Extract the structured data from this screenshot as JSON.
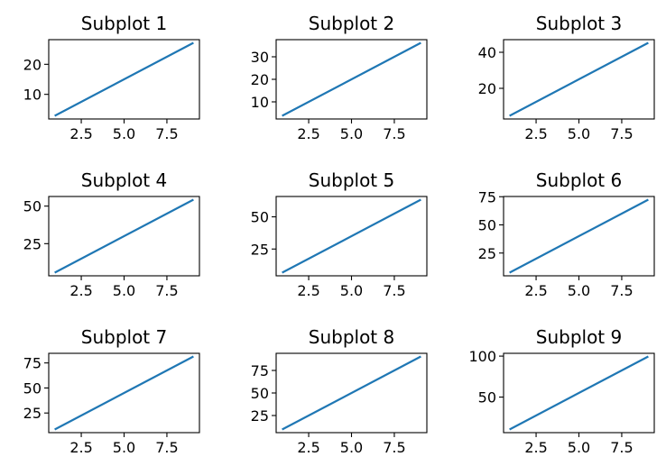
{
  "chart_data": [
    {
      "type": "line",
      "title": "Subplot 1",
      "x": [
        1,
        9
      ],
      "y": [
        3,
        27
      ],
      "xlim": [
        0.6,
        9.4
      ],
      "ylim": [
        1.8,
        28.2
      ],
      "xticks": [
        2.5,
        5.0,
        7.5
      ],
      "yticks": [
        10,
        20
      ],
      "xtick_labels": [
        "2.5",
        "5.0",
        "7.5"
      ],
      "ytick_labels": [
        "10",
        "20"
      ],
      "line_color": "#1f77b4"
    },
    {
      "type": "line",
      "title": "Subplot 2",
      "x": [
        1,
        9
      ],
      "y": [
        4,
        36
      ],
      "xlim": [
        0.6,
        9.4
      ],
      "ylim": [
        2.4,
        37.6
      ],
      "xticks": [
        2.5,
        5.0,
        7.5
      ],
      "yticks": [
        10,
        20,
        30
      ],
      "xtick_labels": [
        "2.5",
        "5.0",
        "7.5"
      ],
      "ytick_labels": [
        "10",
        "20",
        "30"
      ],
      "line_color": "#1f77b4"
    },
    {
      "type": "line",
      "title": "Subplot 3",
      "x": [
        1,
        9
      ],
      "y": [
        5,
        45
      ],
      "xlim": [
        0.6,
        9.4
      ],
      "ylim": [
        3,
        47
      ],
      "xticks": [
        2.5,
        5.0,
        7.5
      ],
      "yticks": [
        20,
        40
      ],
      "xtick_labels": [
        "2.5",
        "5.0",
        "7.5"
      ],
      "ytick_labels": [
        "20",
        "40"
      ],
      "line_color": "#1f77b4"
    },
    {
      "type": "line",
      "title": "Subplot 4",
      "x": [
        1,
        9
      ],
      "y": [
        6,
        54
      ],
      "xlim": [
        0.6,
        9.4
      ],
      "ylim": [
        3.6,
        56.4
      ],
      "xticks": [
        2.5,
        5.0,
        7.5
      ],
      "yticks": [
        25,
        50
      ],
      "xtick_labels": [
        "2.5",
        "5.0",
        "7.5"
      ],
      "ytick_labels": [
        "25",
        "50"
      ],
      "line_color": "#1f77b4"
    },
    {
      "type": "line",
      "title": "Subplot 5",
      "x": [
        1,
        9
      ],
      "y": [
        7,
        63
      ],
      "xlim": [
        0.6,
        9.4
      ],
      "ylim": [
        4.2,
        65.8
      ],
      "xticks": [
        2.5,
        5.0,
        7.5
      ],
      "yticks": [
        25,
        50
      ],
      "xtick_labels": [
        "2.5",
        "5.0",
        "7.5"
      ],
      "ytick_labels": [
        "25",
        "50"
      ],
      "line_color": "#1f77b4"
    },
    {
      "type": "line",
      "title": "Subplot 6",
      "x": [
        1,
        9
      ],
      "y": [
        8,
        72
      ],
      "xlim": [
        0.6,
        9.4
      ],
      "ylim": [
        4.8,
        75.2
      ],
      "xticks": [
        2.5,
        5.0,
        7.5
      ],
      "yticks": [
        25,
        50,
        75
      ],
      "xtick_labels": [
        "2.5",
        "5.0",
        "7.5"
      ],
      "ytick_labels": [
        "25",
        "50",
        "75"
      ],
      "line_color": "#1f77b4"
    },
    {
      "type": "line",
      "title": "Subplot 7",
      "x": [
        1,
        9
      ],
      "y": [
        9,
        81
      ],
      "xlim": [
        0.6,
        9.4
      ],
      "ylim": [
        5.4,
        84.6
      ],
      "xticks": [
        2.5,
        5.0,
        7.5
      ],
      "yticks": [
        25,
        50,
        75
      ],
      "xtick_labels": [
        "2.5",
        "5.0",
        "7.5"
      ],
      "ytick_labels": [
        "25",
        "50",
        "75"
      ],
      "line_color": "#1f77b4"
    },
    {
      "type": "line",
      "title": "Subplot 8",
      "x": [
        1,
        9
      ],
      "y": [
        10,
        90
      ],
      "xlim": [
        0.6,
        9.4
      ],
      "ylim": [
        6,
        94
      ],
      "xticks": [
        2.5,
        5.0,
        7.5
      ],
      "yticks": [
        25,
        50,
        75
      ],
      "xtick_labels": [
        "2.5",
        "5.0",
        "7.5"
      ],
      "ytick_labels": [
        "25",
        "50",
        "75"
      ],
      "line_color": "#1f77b4"
    },
    {
      "type": "line",
      "title": "Subplot 9",
      "x": [
        1,
        9
      ],
      "y": [
        11,
        99
      ],
      "xlim": [
        0.6,
        9.4
      ],
      "ylim": [
        6.6,
        103.4
      ],
      "xticks": [
        2.5,
        5.0,
        7.5
      ],
      "yticks": [
        50,
        100
      ],
      "xtick_labels": [
        "2.5",
        "5.0",
        "7.5"
      ],
      "ytick_labels": [
        "50",
        "100"
      ],
      "line_color": "#1f77b4"
    }
  ]
}
